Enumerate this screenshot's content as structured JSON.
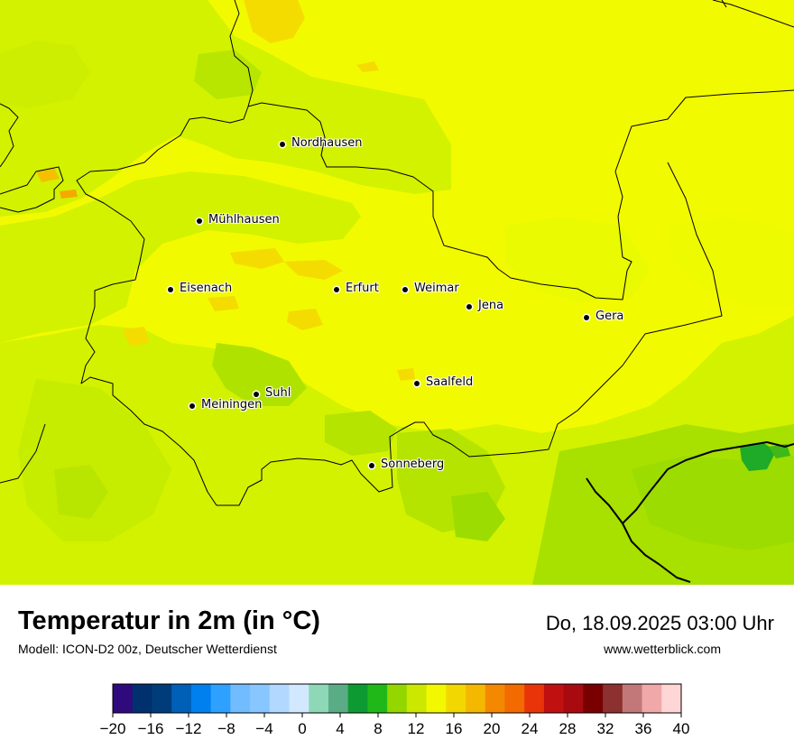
{
  "header": {
    "title": "Temperatur in 2m (in °C)",
    "subtitle": "Modell: ICON-D2 00z, Deutscher Wetterdienst",
    "datetime": "Do, 18.09.2025 03:00 Uhr",
    "website": "www.wetterblick.com"
  },
  "cities": [
    {
      "name": "Nordhausen"
    },
    {
      "name": "Mühlhausen"
    },
    {
      "name": "Eisenach"
    },
    {
      "name": "Erfurt"
    },
    {
      "name": "Weimar"
    },
    {
      "name": "Jena"
    },
    {
      "name": "Gera"
    },
    {
      "name": "Saalfeld"
    },
    {
      "name": "Suhl"
    },
    {
      "name": "Meiningen"
    },
    {
      "name": "Sonneberg"
    }
  ],
  "legend": {
    "min": -20,
    "max": 40,
    "tick_labels": [
      "−20",
      "−16",
      "−12",
      "−8",
      "−4",
      "0",
      "4",
      "8",
      "12",
      "16",
      "20",
      "24",
      "28",
      "32",
      "36",
      "40"
    ],
    "colors": [
      "#2e0a7c",
      "#00306e",
      "#003c7a",
      "#0060b8",
      "#0080ee",
      "#2ea0ff",
      "#70bcff",
      "#88c6ff",
      "#b2d8ff",
      "#d2e8ff",
      "#8ed8b8",
      "#5aac86",
      "#0e9a32",
      "#20b818",
      "#94d600",
      "#cce800",
      "#f2f800",
      "#f2d800",
      "#f4b800",
      "#f48800",
      "#f26a00",
      "#e83408",
      "#c01010",
      "#a80a10",
      "#780000",
      "#8c3030",
      "#c27878",
      "#f0a8a8",
      "#ffd6d6"
    ]
  },
  "map_colors": {
    "warm_yellow": "#f2fa00",
    "light_green": "#d0f000",
    "mid_green": "#a8e000",
    "dark_green": "#1faa28",
    "orange_yellow": "#f4dc00",
    "border": "#000000"
  }
}
